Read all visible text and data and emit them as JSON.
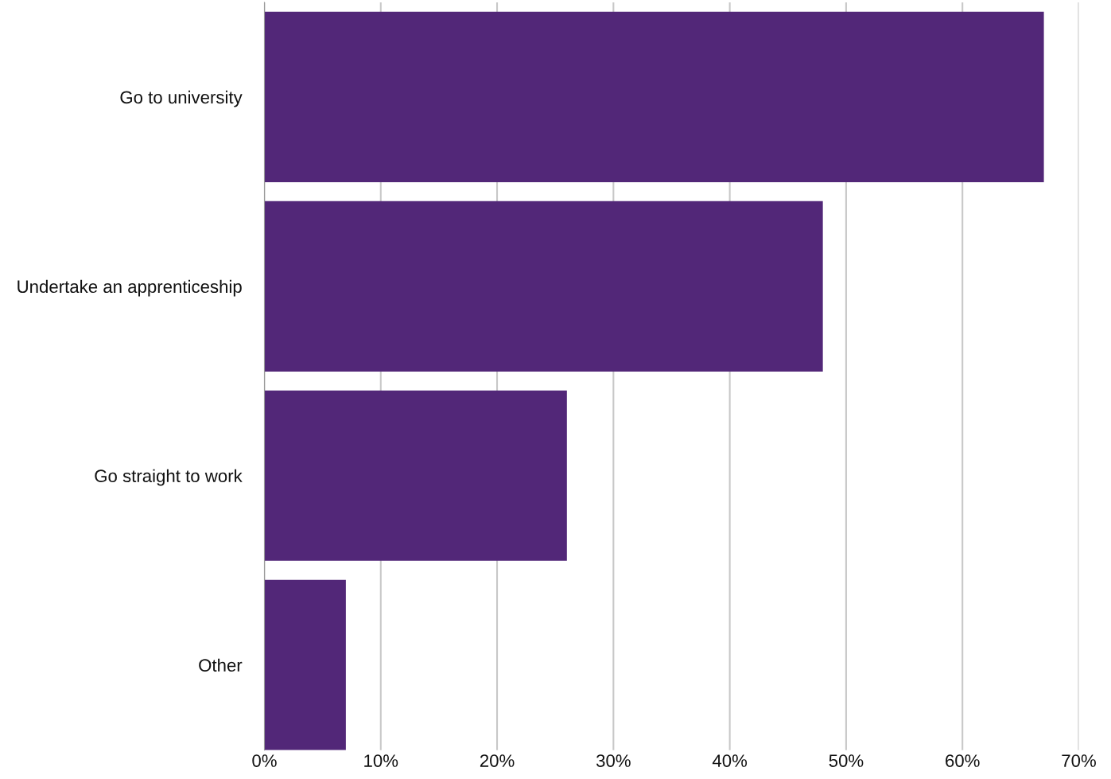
{
  "chart_data": {
    "type": "bar",
    "orientation": "horizontal",
    "categories": [
      "Go to university",
      "Undertake an apprenticeship",
      "Go straight to work",
      "Other"
    ],
    "values": [
      67,
      48,
      26,
      7
    ],
    "color": "#522778",
    "xlim": [
      0,
      70
    ],
    "xticks": [
      {
        "value": 0,
        "label": "0%"
      },
      {
        "value": 10,
        "label": "10%"
      },
      {
        "value": 20,
        "label": "20%"
      },
      {
        "value": 30,
        "label": "30%"
      },
      {
        "value": 40,
        "label": "40%"
      },
      {
        "value": 50,
        "label": "50%"
      },
      {
        "value": 60,
        "label": "60%"
      },
      {
        "value": 70,
        "label": "70%"
      }
    ],
    "grid": "x"
  }
}
